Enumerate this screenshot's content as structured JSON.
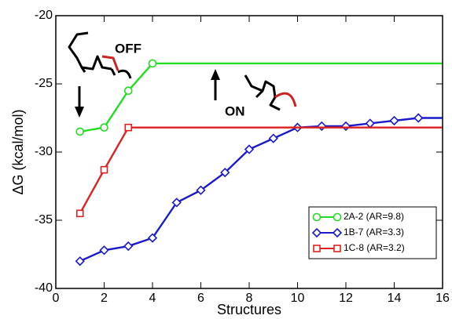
{
  "chart_data": {
    "type": "line",
    "xlabel": "Structures",
    "ylabel": "ΔG (kcal/mol)",
    "xlim": [
      0,
      16
    ],
    "xticks": [
      0,
      2,
      4,
      6,
      8,
      10,
      12,
      14,
      16
    ],
    "ylim": [
      -40,
      -20
    ],
    "yticks": [
      -40,
      -35,
      -30,
      -25,
      -20
    ],
    "legend": "lower right",
    "annotations": [
      "OFF",
      "ON"
    ],
    "series": [
      {
        "name": "2A-2 (AR=9.8)",
        "color": "#22dd22",
        "marker": "circle",
        "x": [
          1,
          2,
          3,
          4
        ],
        "values": [
          -28.5,
          -28.2,
          -25.5,
          -23.5
        ]
      },
      {
        "name": "1B-7 (AR=3.3)",
        "color": "#1a1acc",
        "marker": "diamond",
        "x": [
          1,
          2,
          3,
          4,
          5,
          6,
          7,
          8,
          9,
          10,
          11,
          12,
          13,
          14,
          15
        ],
        "values": [
          -38,
          -37.2,
          -36.9,
          -36.3,
          -33.7,
          -32.8,
          -31.5,
          -29.8,
          -29,
          -28.2,
          -28.1,
          -28.1,
          -27.9,
          -27.7,
          -27.5
        ]
      },
      {
        "name": "1C-8 (AR=3.2)",
        "color": "#dd2222",
        "marker": "square",
        "x": [
          1,
          2,
          3
        ],
        "values": [
          -34.5,
          -31.3,
          -28.2
        ]
      }
    ]
  }
}
